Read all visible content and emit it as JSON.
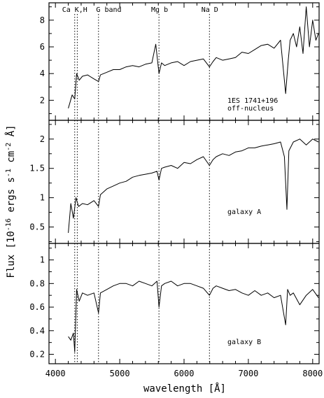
{
  "chart_data": {
    "type": "line",
    "xlabel": "wavelength [Å]",
    "ylabel": "Flux [10^-16 ergs s^-1 cm^-2 Å]",
    "ylabel_parts": {
      "main": "Flux [10",
      "exp1": "-16",
      "mid": " ergs s",
      "exp2": "-1",
      "mid2": " cm",
      "exp3": "-2",
      "end": " Å]"
    },
    "xlim": [
      3900,
      8100
    ],
    "xticks": [
      4000,
      5000,
      6000,
      7000,
      8000
    ],
    "xtick_labels": [
      "4000",
      "5000",
      "6000",
      "7000",
      "8000"
    ],
    "line_markers": [
      {
        "label": "Ca K,H",
        "x": [
          4300,
          4340
        ],
        "label_x": 4300
      },
      {
        "label": "G band",
        "x": [
          4670
        ],
        "label_x": 4830
      },
      {
        "label": "Mg b",
        "x": [
          5610
        ],
        "label_x": 5620
      },
      {
        "label": "Na D",
        "x": [
          6395
        ],
        "label_x": 6400
      }
    ],
    "panels": [
      {
        "annotation": [
          "1ES 1741+196",
          "off-nucleus"
        ],
        "ylim": [
          0.5,
          9.3
        ],
        "yticks": [
          2,
          4,
          6,
          8
        ],
        "ytick_labels": [
          "2",
          "4",
          "6",
          "8"
        ],
        "series": [
          {
            "name": "1ES 1741+196 off-nucleus",
            "x": [
              4200,
              4260,
              4300,
              4330,
              4370,
              4420,
              4500,
              4600,
              4670,
              4700,
              4800,
              4900,
              5000,
              5100,
              5200,
              5300,
              5400,
              5500,
              5560,
              5590,
              5610,
              5650,
              5700,
              5800,
              5900,
              6000,
              6100,
              6200,
              6300,
              6395,
              6450,
              6500,
              6600,
              6700,
              6800,
              6900,
              7000,
              7100,
              7200,
              7300,
              7400,
              7500,
              7580,
              7620,
              7650,
              7700,
              7750,
              7800,
              7850,
              7900,
              7950,
              8000,
              8050,
              8090
            ],
            "y": [
              1.4,
              2.4,
              2.1,
              4.0,
              3.5,
              3.8,
              3.9,
              3.6,
              3.4,
              3.9,
              4.1,
              4.3,
              4.3,
              4.5,
              4.6,
              4.5,
              4.7,
              4.8,
              6.2,
              4.9,
              4.0,
              4.8,
              4.6,
              4.8,
              4.9,
              4.6,
              4.9,
              5.0,
              5.1,
              4.5,
              4.9,
              5.2,
              5.0,
              5.1,
              5.2,
              5.6,
              5.5,
              5.8,
              6.1,
              6.2,
              5.9,
              6.5,
              2.5,
              5.0,
              6.5,
              7.0,
              6.0,
              7.5,
              5.5,
              9.0,
              6.0,
              8.0,
              6.5,
              7.0
            ]
          }
        ]
      },
      {
        "annotation": [
          "galaxy A"
        ],
        "ylim": [
          0.22,
          2.32
        ],
        "yticks": [
          0.5,
          1,
          1.5,
          2
        ],
        "ytick_labels": [
          "0.5",
          "1",
          "1.5",
          "2"
        ],
        "series": [
          {
            "name": "galaxy A",
            "x": [
              4200,
              4240,
              4280,
              4320,
              4360,
              4420,
              4500,
              4600,
              4670,
              4700,
              4800,
              4900,
              5000,
              5100,
              5200,
              5300,
              5400,
              5500,
              5580,
              5610,
              5650,
              5700,
              5800,
              5900,
              6000,
              6100,
              6200,
              6300,
              6395,
              6450,
              6500,
              6600,
              6700,
              6800,
              6900,
              7000,
              7100,
              7200,
              7300,
              7400,
              7500,
              7560,
              7600,
              7630,
              7700,
              7800,
              7900,
              8000,
              8090
            ],
            "y": [
              0.4,
              0.9,
              0.65,
              1.0,
              0.85,
              0.9,
              0.88,
              0.95,
              0.85,
              1.05,
              1.15,
              1.2,
              1.25,
              1.28,
              1.35,
              1.38,
              1.4,
              1.42,
              1.45,
              1.3,
              1.5,
              1.52,
              1.55,
              1.5,
              1.6,
              1.58,
              1.65,
              1.7,
              1.55,
              1.65,
              1.7,
              1.75,
              1.72,
              1.78,
              1.8,
              1.85,
              1.85,
              1.88,
              1.9,
              1.92,
              1.95,
              1.7,
              0.8,
              1.8,
              1.95,
              2.0,
              1.9,
              2.0,
              1.95
            ]
          }
        ]
      },
      {
        "annotation": [
          "galaxy B"
        ],
        "ylim": [
          0.12,
          1.14
        ],
        "yticks": [
          0.2,
          0.4,
          0.6,
          0.8,
          1
        ],
        "ytick_labels": [
          "0.2",
          "0.4",
          "0.6",
          "0.8",
          "1"
        ],
        "series": [
          {
            "name": "galaxy B",
            "x": [
              4200,
              4240,
              4280,
              4300,
              4330,
              4370,
              4420,
              4500,
              4600,
              4670,
              4700,
              4800,
              4900,
              5000,
              5100,
              5200,
              5300,
              5400,
              5500,
              5580,
              5610,
              5650,
              5700,
              5800,
              5900,
              6000,
              6100,
              6200,
              6300,
              6395,
              6450,
              6500,
              6600,
              6700,
              6800,
              6900,
              7000,
              7100,
              7200,
              7300,
              7400,
              7500,
              7580,
              7610,
              7650,
              7700,
              7800,
              7900,
              8000,
              8090
            ],
            "y": [
              0.35,
              0.32,
              0.38,
              0.22,
              0.75,
              0.65,
              0.72,
              0.7,
              0.72,
              0.55,
              0.72,
              0.75,
              0.78,
              0.8,
              0.8,
              0.78,
              0.82,
              0.8,
              0.78,
              0.82,
              0.6,
              0.78,
              0.8,
              0.82,
              0.78,
              0.8,
              0.8,
              0.78,
              0.76,
              0.7,
              0.76,
              0.78,
              0.76,
              0.74,
              0.75,
              0.72,
              0.7,
              0.74,
              0.7,
              0.72,
              0.68,
              0.7,
              0.45,
              0.75,
              0.7,
              0.72,
              0.62,
              0.7,
              0.75,
              0.68
            ]
          }
        ]
      }
    ]
  }
}
